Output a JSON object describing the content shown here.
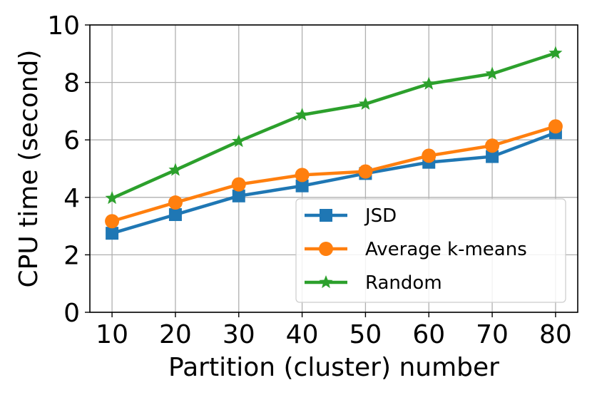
{
  "chart_data": {
    "type": "line",
    "title": "",
    "xlabel": "Partition (cluster) number",
    "ylabel": "CPU time (second)",
    "x": [
      10,
      20,
      30,
      40,
      50,
      60,
      70,
      80
    ],
    "xticks": [
      "10",
      "20",
      "30",
      "40",
      "50",
      "60",
      "70",
      "80"
    ],
    "yticks": [
      "0",
      "2",
      "4",
      "6",
      "8",
      "10"
    ],
    "ylim": [
      0,
      10
    ],
    "xlim": [
      6.5,
      83.5
    ],
    "grid": true,
    "legend_position": "lower-right",
    "series": [
      {
        "name": "JSD",
        "color": "#1f77b4",
        "marker": "square",
        "values": [
          2.75,
          3.4,
          4.05,
          4.4,
          4.83,
          5.22,
          5.42,
          6.25
        ]
      },
      {
        "name": "Average k-means",
        "color": "#ff7f0e",
        "marker": "circle",
        "values": [
          3.17,
          3.82,
          4.45,
          4.78,
          4.9,
          5.45,
          5.8,
          6.47
        ]
      },
      {
        "name": "Random",
        "color": "#2ca02c",
        "marker": "star",
        "values": [
          3.97,
          4.95,
          5.95,
          6.87,
          7.25,
          7.95,
          8.3,
          9.02
        ]
      }
    ]
  }
}
